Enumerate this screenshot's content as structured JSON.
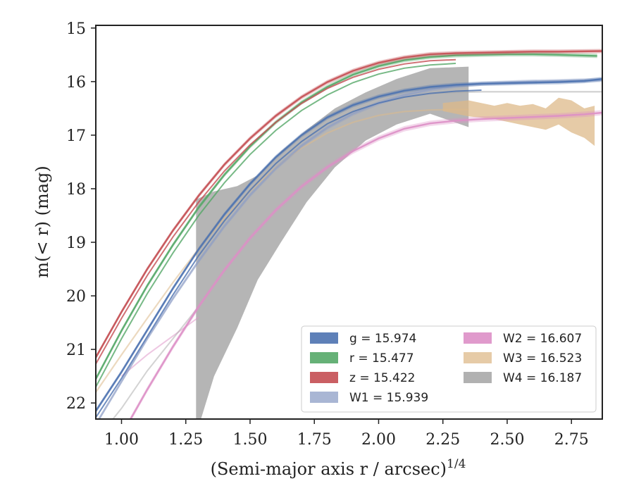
{
  "chart_data": {
    "type": "line",
    "title": "",
    "xlabel": "(Semi-major axis r / arcsec)",
    "xlabel_exponent": "1/4",
    "ylabel": "m(< r) (mag)",
    "x_range": [
      0.9,
      2.87
    ],
    "y_range": [
      22.3,
      14.95
    ],
    "y_inverted": true,
    "x_ticks": [
      1.0,
      1.25,
      1.5,
      1.75,
      2.0,
      2.25,
      2.5,
      2.75
    ],
    "x_tick_labels": [
      "1.00",
      "1.25",
      "1.50",
      "1.75",
      "2.00",
      "2.25",
      "2.50",
      "2.75"
    ],
    "y_ticks": [
      15,
      16,
      17,
      18,
      19,
      20,
      21,
      22
    ],
    "y_tick_labels": [
      "15",
      "16",
      "17",
      "18",
      "19",
      "20",
      "21",
      "22"
    ],
    "grid": false,
    "legend_position": "lower-right",
    "legend_columns": 2,
    "series": [
      {
        "id": "g",
        "name": "g = 15.974",
        "color": "#4c72b0",
        "line_alpha": 0.9,
        "x": [
          0.9,
          1.0,
          1.1,
          1.2,
          1.3,
          1.4,
          1.5,
          1.6,
          1.7,
          1.8,
          1.9,
          2.0,
          2.1,
          2.2,
          2.3,
          2.4,
          2.5,
          2.6,
          2.7,
          2.8,
          2.87
        ],
        "y": [
          22.15,
          21.42,
          20.64,
          19.86,
          19.13,
          18.48,
          17.91,
          17.41,
          17.0,
          16.67,
          16.44,
          16.28,
          16.17,
          16.1,
          16.06,
          16.04,
          16.03,
          16.02,
          16.01,
          15.99,
          15.95
        ],
        "band_width": 0.04,
        "offset_line": 0.12
      },
      {
        "id": "r",
        "name": "r = 15.477",
        "color": "#55a868",
        "line_alpha": 0.9,
        "x": [
          0.9,
          1.0,
          1.1,
          1.2,
          1.3,
          1.4,
          1.5,
          1.6,
          1.7,
          1.8,
          1.9,
          2.0,
          2.1,
          2.2,
          2.3,
          2.4,
          2.5,
          2.6,
          2.7,
          2.85
        ],
        "y": [
          21.55,
          20.65,
          19.81,
          19.05,
          18.35,
          17.74,
          17.21,
          16.76,
          16.39,
          16.1,
          15.87,
          15.71,
          15.6,
          15.54,
          15.51,
          15.5,
          15.49,
          15.49,
          15.5,
          15.52
        ],
        "band_width": 0.04,
        "offset_line": 0.15
      },
      {
        "id": "z",
        "name": "z = 15.422",
        "color": "#c44e52",
        "line_alpha": 0.9,
        "x": [
          0.9,
          1.0,
          1.1,
          1.2,
          1.3,
          1.4,
          1.5,
          1.6,
          1.7,
          1.8,
          1.9,
          2.0,
          2.1,
          2.2,
          2.3,
          2.4,
          2.5,
          2.6,
          2.7,
          2.87
        ],
        "y": [
          21.15,
          20.3,
          19.5,
          18.78,
          18.13,
          17.55,
          17.06,
          16.64,
          16.29,
          16.01,
          15.8,
          15.65,
          15.55,
          15.49,
          15.47,
          15.46,
          15.45,
          15.44,
          15.44,
          15.43
        ],
        "band_width": 0.04,
        "offset_line": 0.12
      },
      {
        "id": "W1",
        "name": "W1 = 15.939",
        "color": "#8c9dc5",
        "line_alpha": 0.6,
        "x": [
          0.9,
          1.0,
          1.1,
          1.2,
          1.3,
          1.4,
          1.5,
          1.6,
          1.7,
          1.8,
          1.9,
          2.0,
          2.1,
          2.2,
          2.3,
          2.4,
          2.5,
          2.6,
          2.7,
          2.87
        ],
        "y": [
          22.4,
          21.6,
          20.8,
          20.05,
          19.35,
          18.7,
          18.12,
          17.62,
          17.2,
          16.86,
          16.6,
          16.4,
          16.25,
          16.15,
          16.08,
          16.04,
          16.02,
          16.0,
          15.99,
          15.97
        ],
        "band_width": 0.04
      },
      {
        "id": "W2",
        "name": "W2 = 16.607",
        "color": "#dd8fc6",
        "line_alpha": 0.9,
        "x": [
          1.0,
          1.1,
          1.2,
          1.3,
          1.4,
          1.5,
          1.6,
          1.7,
          1.8,
          1.9,
          2.0,
          2.1,
          2.2,
          2.3,
          2.4,
          2.5,
          2.6,
          2.7,
          2.8,
          2.87
        ],
        "y": [
          22.6,
          21.75,
          20.95,
          20.2,
          19.52,
          18.92,
          18.4,
          17.96,
          17.6,
          17.3,
          17.06,
          16.88,
          16.78,
          16.73,
          16.7,
          16.68,
          16.66,
          16.64,
          16.61,
          16.58
        ],
        "band_width": 0.05,
        "faint_x": [
          1.0,
          1.1,
          1.2,
          1.3
        ],
        "faint_y": [
          21.5,
          21.1,
          20.75,
          20.4
        ]
      },
      {
        "id": "W3",
        "name": "W3 = 16.523",
        "color": "#ddb98a",
        "line_x": [
          0.9,
          1.0,
          1.1,
          1.2,
          1.3,
          1.4,
          1.5,
          1.6,
          1.7,
          1.8,
          1.9,
          2.0,
          2.1,
          2.2,
          2.3,
          2.35
        ],
        "line_y": [
          21.8,
          21.1,
          20.42,
          19.75,
          19.12,
          18.55,
          18.04,
          17.6,
          17.24,
          16.96,
          16.76,
          16.63,
          16.56,
          16.53,
          16.52,
          16.52
        ],
        "band_x": [
          2.25,
          2.35,
          2.45,
          2.5,
          2.55,
          2.6,
          2.65,
          2.7,
          2.75,
          2.8,
          2.84
        ],
        "band_low": [
          16.4,
          16.35,
          16.45,
          16.4,
          16.45,
          16.42,
          16.5,
          16.3,
          16.35,
          16.5,
          16.45
        ],
        "band_high": [
          16.55,
          16.65,
          16.7,
          16.75,
          16.8,
          16.85,
          16.9,
          16.8,
          16.95,
          17.05,
          17.2
        ]
      },
      {
        "id": "W4",
        "name": "W4 = 16.187",
        "color": "#a8a8a8",
        "band_x": [
          1.29,
          1.36,
          1.45,
          1.53,
          1.62,
          1.72,
          1.83,
          1.95,
          2.07,
          2.2,
          2.35
        ],
        "band_low": [
          18.2,
          18.05,
          17.95,
          17.75,
          17.3,
          16.9,
          16.5,
          16.2,
          15.95,
          15.75,
          15.72
        ],
        "band_high": [
          22.6,
          21.5,
          20.6,
          19.7,
          19.0,
          18.25,
          17.6,
          17.1,
          16.8,
          16.6,
          16.85
        ],
        "line_x": [
          2.2,
          2.3,
          2.4,
          2.5,
          2.6,
          2.7,
          2.87
        ],
        "line_y": [
          16.22,
          16.2,
          16.19,
          16.19,
          16.19,
          16.19,
          16.19
        ],
        "faint_x": [
          0.9,
          1.0,
          1.1,
          1.2,
          1.3
        ],
        "faint_y": [
          22.7,
          22.1,
          21.4,
          20.8,
          20.2
        ]
      }
    ]
  }
}
